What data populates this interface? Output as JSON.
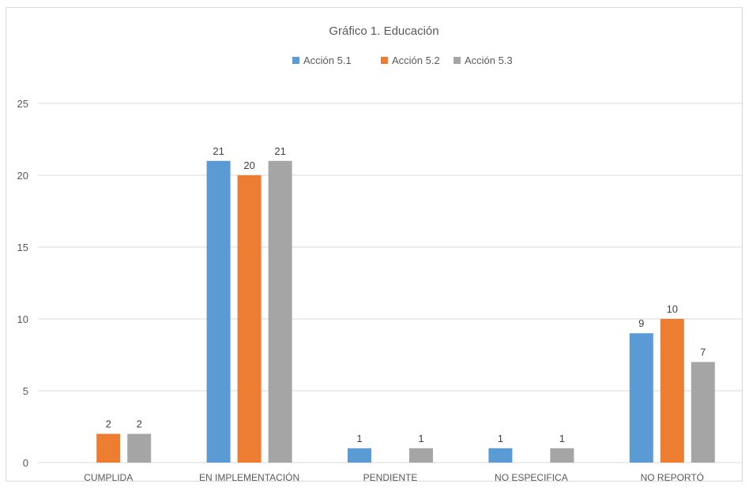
{
  "chart_data": {
    "type": "bar",
    "title": "Gráfico 1. Educación",
    "xlabel": "",
    "ylabel": "",
    "categories": [
      "CUMPLIDA",
      "EN IMPLEMENTACIÓN",
      "PENDIENTE",
      "NO ESPECIFICA",
      "NO REPORTÓ"
    ],
    "series": [
      {
        "name": "Acción 5.1",
        "color": "#5B9BD5",
        "values": [
          0,
          21,
          1,
          1,
          9
        ]
      },
      {
        "name": "Acción 5.2",
        "color": "#ED7D31",
        "values": [
          2,
          20,
          0,
          0,
          10
        ]
      },
      {
        "name": "Acción 5.3",
        "color": "#A5A5A5",
        "values": [
          2,
          21,
          1,
          1,
          7
        ]
      }
    ],
    "ylim": [
      0,
      25
    ],
    "yticks": [
      0,
      5,
      10,
      15,
      20,
      25
    ],
    "grid": true,
    "legend": "top-center"
  }
}
